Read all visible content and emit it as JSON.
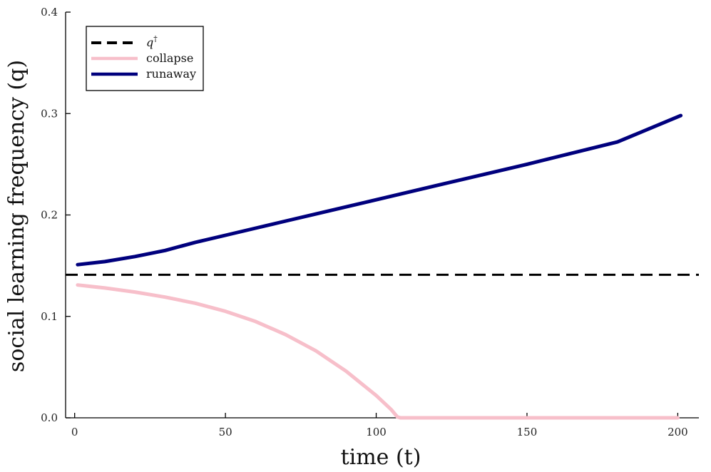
{
  "chart_data": {
    "type": "line",
    "xlabel": "time (t)",
    "ylabel": "social learning frequency (q)",
    "xlim": [
      -3,
      207
    ],
    "ylim": [
      0,
      0.4
    ],
    "x_ticks": [
      0,
      50,
      100,
      150,
      200
    ],
    "x_tick_labels": [
      "0",
      "50",
      "100",
      "150",
      "200"
    ],
    "y_ticks": [
      0,
      0.1,
      0.2,
      0.3,
      0.4
    ],
    "y_tick_labels": [
      "0.0",
      "0.1",
      "0.2",
      "0.3",
      "0.4"
    ],
    "grid": false,
    "legend_position": "top-left",
    "series": [
      {
        "name": "q†",
        "name_main": "q",
        "name_sup": "†",
        "style": "dashed",
        "color": "#000000",
        "x": [
          -3,
          207
        ],
        "y": [
          0.141,
          0.141
        ]
      },
      {
        "name": "collapse",
        "style": "solid",
        "color": "#f7bfca",
        "x": [
          1,
          10,
          20,
          30,
          40,
          50,
          60,
          70,
          80,
          90,
          100,
          105,
          107,
          108,
          120,
          150,
          200
        ],
        "y": [
          0.131,
          0.128,
          0.124,
          0.119,
          0.113,
          0.105,
          0.095,
          0.082,
          0.066,
          0.046,
          0.022,
          0.008,
          0.001,
          0.0,
          0.0,
          0.0,
          0.0
        ]
      },
      {
        "name": "runaway",
        "style": "solid",
        "color": "#00007d",
        "x": [
          1,
          10,
          20,
          30,
          40,
          50,
          60,
          70,
          80,
          100,
          120,
          150,
          180,
          201
        ],
        "y": [
          0.151,
          0.154,
          0.159,
          0.165,
          0.173,
          0.18,
          0.187,
          0.194,
          0.201,
          0.215,
          0.229,
          0.25,
          0.272,
          0.298
        ]
      }
    ]
  }
}
